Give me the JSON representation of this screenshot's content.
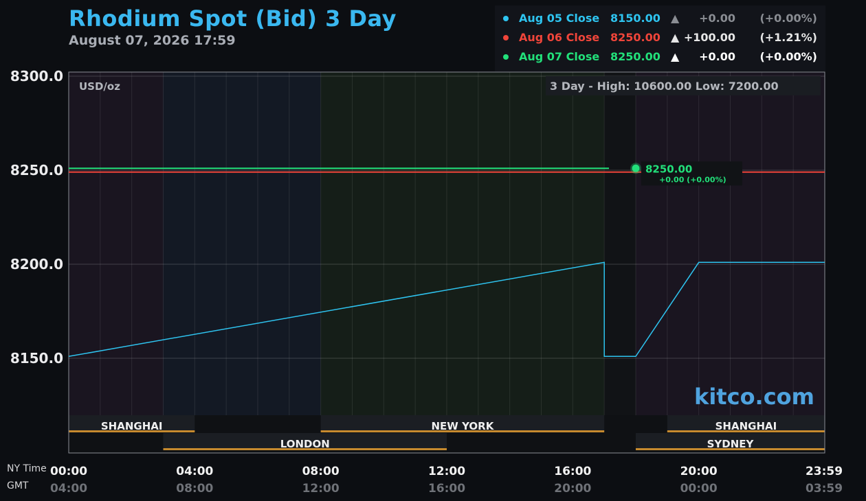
{
  "header": {
    "title": "Rhodium Spot (Bid) 3 Day",
    "subtitle": "August 07, 2026 17:59"
  },
  "legend": [
    {
      "label": "Aug 05 Close",
      "value": "8150.00",
      "arrow": "▲",
      "change": "+0.00",
      "percent": "(+0.00%)",
      "color": "#2ec4f0",
      "change_color": "#8a8d93"
    },
    {
      "label": "Aug 06 Close",
      "value": "8250.00",
      "arrow": "▲",
      "change": "+100.00",
      "percent": "(+1.21%)",
      "color": "#f0453a",
      "change_color": "#e6e6e6"
    },
    {
      "label": "Aug 07 Close",
      "value": "8250.00",
      "arrow": "▲",
      "change": "+0.00",
      "percent": "(+0.00%)",
      "color": "#22e07a",
      "change_color": "#ffffff"
    }
  ],
  "chart_data": {
    "type": "line",
    "title": "Rhodium Spot (Bid) 3 Day",
    "unit_label": "USD/oz",
    "range_label": "3 Day - High: 10600.00  Low: 7200.00",
    "ylim": [
      8100,
      8300
    ],
    "xlim_hours": [
      0,
      24
    ],
    "y_ticks": [
      "8300.0",
      "8250.0",
      "8200.0",
      "8150.0"
    ],
    "y_tick_values": [
      8300,
      8250,
      8200,
      8150
    ],
    "x_ticks": [
      {
        "ny": "00:00",
        "gmt": "04:00",
        "hour": 0
      },
      {
        "ny": "04:00",
        "gmt": "08:00",
        "hour": 4
      },
      {
        "ny": "08:00",
        "gmt": "12:00",
        "hour": 8
      },
      {
        "ny": "12:00",
        "gmt": "16:00",
        "hour": 12
      },
      {
        "ny": "16:00",
        "gmt": "20:00",
        "hour": 16
      },
      {
        "ny": "20:00",
        "gmt": "00:00",
        "hour": 20
      },
      {
        "ny": "23:59",
        "gmt": "03:59",
        "hour": 24
      }
    ],
    "x_row_labels": {
      "ny": "NY Time",
      "gmt": "GMT"
    },
    "series": [
      {
        "name": "Aug 05 Close",
        "color": "#2ec4f0",
        "points": [
          [
            0,
            8151
          ],
          [
            17,
            8201
          ],
          [
            17,
            8176
          ],
          [
            17,
            8151
          ],
          [
            18,
            8151
          ],
          [
            20,
            8201
          ],
          [
            24,
            8201
          ]
        ]
      }
    ],
    "reference_lines": [
      {
        "name": "Aug 06 Close",
        "value": 8249,
        "color": "#f0453a"
      },
      {
        "name": "Aug 07 Close",
        "value": 8251,
        "color": "#22e07a",
        "end_hour": 17.15
      }
    ],
    "current": {
      "hour": 18,
      "value": 8251,
      "label": "8250.00",
      "change": "+0.00 (+0.00%)",
      "color": "#22e07a"
    },
    "sessions_top": [
      {
        "name": "SHANGHAI",
        "start": 0,
        "end": 4
      },
      {
        "name": "NEW YORK",
        "start": 8,
        "end": 17
      },
      {
        "name": "SHANGHAI",
        "start": 19,
        "end": 24
      }
    ],
    "sessions_bottom": [
      {
        "name": "LONDON",
        "start": 3,
        "end": 12
      },
      {
        "name": "SYDNEY",
        "start": 18,
        "end": 24
      }
    ],
    "watermark": "kitco.com"
  }
}
